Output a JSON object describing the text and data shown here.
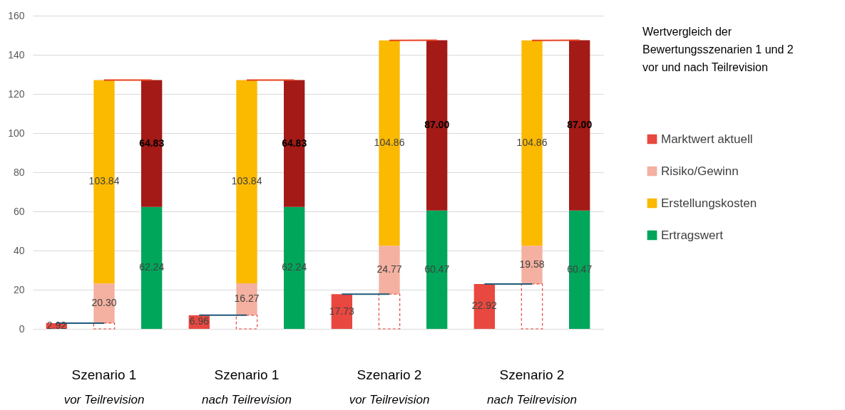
{
  "chart_data": {
    "type": "bar",
    "title": "Wertvergleich der Bewertungsszenarien 1 und 2 vor und nach Teilrevision",
    "categories": [
      null,
      "Szenario 1\nvor Teilrevision",
      null,
      null,
      "Szenario 1\nnach Teilrevision",
      null,
      null,
      "Szenario 2\nvor Teilrevision",
      null,
      null,
      "Szenario 2\nnach Teilrevision",
      null
    ],
    "ylim": [
      0,
      160
    ],
    "yticks": [
      0,
      20,
      40,
      60,
      80,
      100,
      120,
      140,
      160
    ],
    "grid": "y",
    "legend": "right",
    "stacked": true,
    "series": [
      {
        "name": "Marktwert aktuell",
        "color": "#e8483f",
        "values": [
          2.92,
          null,
          null,
          6.96,
          null,
          null,
          17.73,
          null,
          null,
          22.92,
          null,
          null
        ],
        "value_labels": [
          "2.92",
          null,
          null,
          "6.96",
          null,
          null,
          "17.73",
          null,
          null,
          "22.92",
          null,
          null
        ]
      },
      {
        "color": "#e8483f",
        "line_style": "dashed",
        "values": [
          null,
          2.92,
          null,
          null,
          6.96,
          null,
          null,
          17.73,
          null,
          null,
          22.92,
          null
        ]
      },
      {
        "name": "Risiko/Gewinn",
        "color": "#f4b0a0",
        "values": [
          null,
          20.3,
          null,
          null,
          16.27,
          null,
          null,
          24.77,
          null,
          null,
          19.58,
          null
        ],
        "value_labels": [
          null,
          "20.30",
          null,
          null,
          "16.27",
          null,
          null,
          "24.77",
          null,
          null,
          "19.58",
          null
        ]
      },
      {
        "name": "Erstellungskosten",
        "color": "#fbb900",
        "values": [
          null,
          103.84,
          null,
          null,
          103.84,
          null,
          null,
          104.86,
          null,
          null,
          104.86,
          null
        ],
        "value_labels": [
          null,
          "103.84",
          null,
          null,
          "103.84",
          null,
          null,
          "104.86",
          null,
          null,
          "104.86",
          null
        ]
      },
      {
        "name": "Ertragswert",
        "color": "#00a65a",
        "values": [
          null,
          null,
          62.24,
          null,
          null,
          62.24,
          null,
          null,
          60.47,
          null,
          null,
          60.47
        ],
        "value_labels": [
          null,
          null,
          "62.24",
          null,
          null,
          "62.24",
          null,
          null,
          "60.47",
          null,
          null,
          "60.47"
        ]
      },
      {
        "color": "#a31a17",
        "values": [
          null,
          null,
          64.83,
          null,
          null,
          64.83,
          null,
          null,
          87.0,
          null,
          null,
          87.0
        ],
        "value_labels": [
          null,
          null,
          "64.83",
          null,
          null,
          "64.83",
          null,
          null,
          "87.00",
          null,
          null,
          "87.00"
        ]
      },
      {
        "type": "line",
        "color": "#1f5a7a",
        "values": [
          2.92,
          2.92,
          null,
          6.96,
          6.96,
          null,
          17.73,
          17.73,
          null,
          22.92,
          22.92,
          null
        ]
      },
      {
        "type": "line",
        "color": "#e8411e",
        "values": [
          null,
          127.06,
          127.07,
          null,
          127.07,
          127.07,
          null,
          147.36,
          147.47,
          null,
          147.36,
          147.47
        ]
      }
    ]
  }
}
